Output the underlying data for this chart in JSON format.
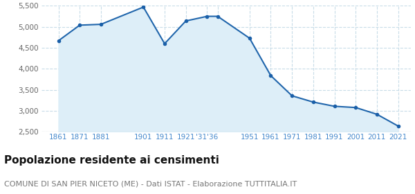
{
  "years": [
    1861,
    1871,
    1881,
    1901,
    1911,
    1921,
    1931,
    1936,
    1951,
    1961,
    1971,
    1981,
    1991,
    2001,
    2011,
    2021
  ],
  "population": [
    4670,
    5040,
    5060,
    5470,
    4600,
    5140,
    5250,
    5250,
    4730,
    3840,
    3360,
    3210,
    3110,
    3080,
    2920,
    2640
  ],
  "line_color": "#2166ac",
  "fill_color": "#ddeef8",
  "marker_color": "#1a5fa8",
  "bg_color": "#ffffff",
  "grid_color": "#c8dce8",
  "tick_color": "#4488cc",
  "title": "Popolazione residente ai censimenti",
  "subtitle": "COMUNE DI SAN PIER NICETO (ME) - Dati ISTAT - Elaborazione TUTTITALIA.IT",
  "ylim": [
    2500,
    5500
  ],
  "yticks": [
    2500,
    3000,
    3500,
    4000,
    4500,
    5000,
    5500
  ],
  "special_ticks": [
    1861,
    1871,
    1881,
    1901,
    1911,
    1921,
    1931,
    1936,
    1951,
    1961,
    1971,
    1981,
    1991,
    2001,
    2011,
    2021
  ],
  "special_labels": [
    "1861",
    "1871",
    "1881",
    "1901",
    "1911",
    "1921",
    "'31'36",
    "",
    "1951",
    "1961",
    "1971",
    "1981",
    "1991",
    "2001",
    "2011",
    "2021"
  ],
  "xlim": [
    1853,
    2027
  ],
  "title_fontsize": 11,
  "subtitle_fontsize": 8
}
